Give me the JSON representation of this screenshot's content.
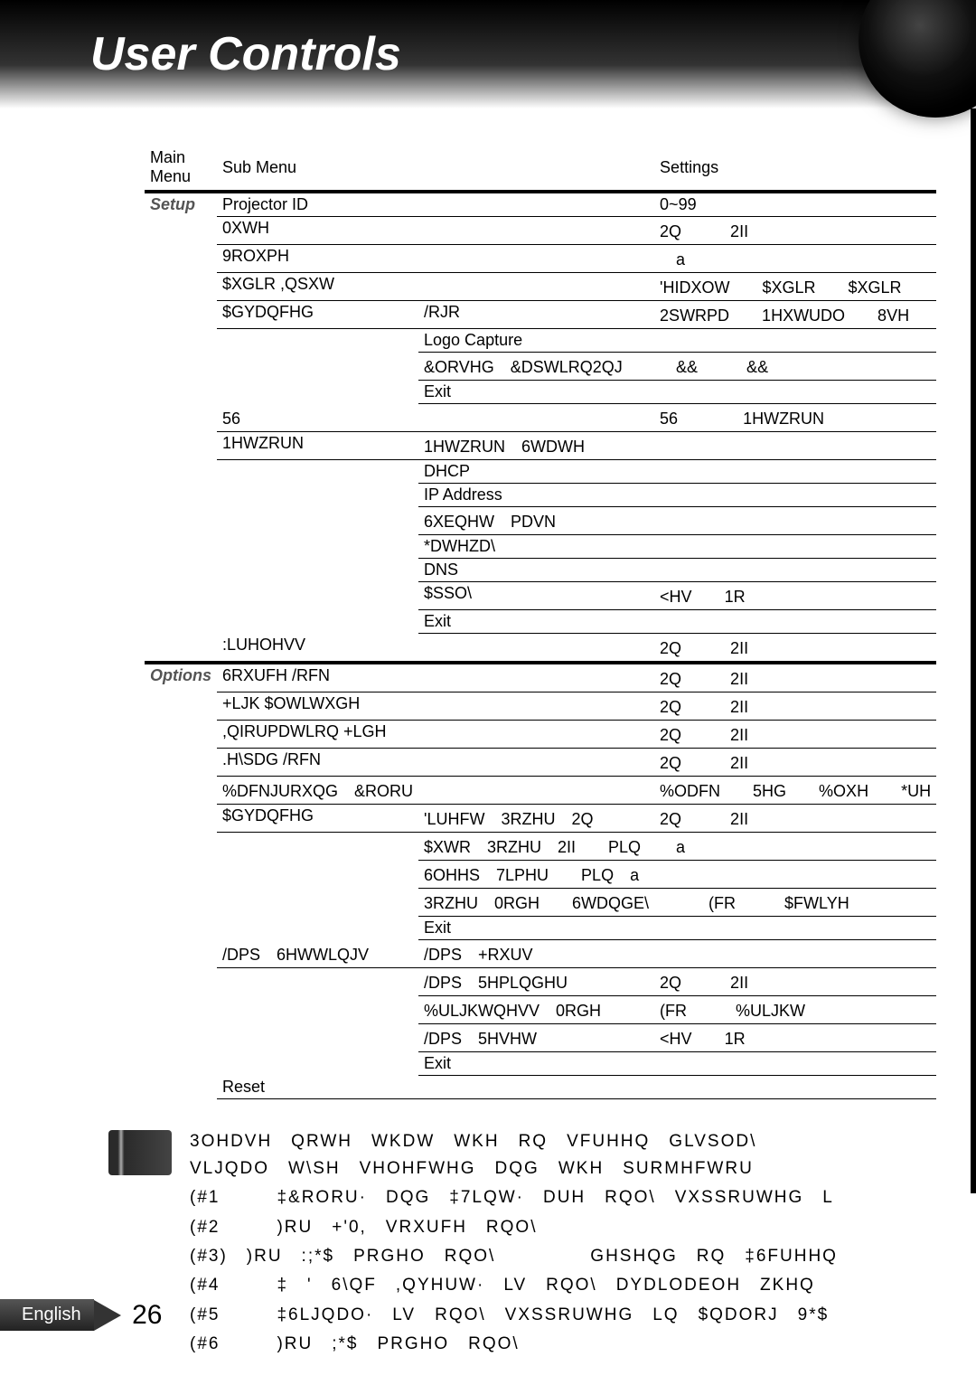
{
  "header": {
    "title": "User Controls"
  },
  "columns": {
    "c1": "Main Menu",
    "c2": "Sub Menu",
    "c3": "Settings"
  },
  "setup": {
    "label": "Setup",
    "rows": [
      {
        "sub": "Projector ID",
        "third": "",
        "set": "0~99"
      },
      {
        "sub": "0XWH",
        "third": "",
        "set": "2Q　　　2II"
      },
      {
        "sub": "9ROXPH",
        "third": "",
        "set": "　a　"
      },
      {
        "sub": "$XGLR ,QSXW",
        "third": "",
        "set": "'HIDXOW　　$XGLR　　$XGLR"
      },
      {
        "sub": "$GYDQFHG",
        "third": "/RJR",
        "set": "2SWRPD　　1HXWUDO　　8VH"
      },
      {
        "sub": "",
        "third": "Logo Capture",
        "set": ""
      },
      {
        "sub": "",
        "third": "&ORVHG　&DSWLRQ2QJ",
        "set": "　&&　　　&&　"
      },
      {
        "sub": "",
        "third": "Exit",
        "set": ""
      },
      {
        "sub": "56　　",
        "third": "",
        "set": "56　　　　1HWZRUN"
      },
      {
        "sub": "1HWZRUN",
        "third": "1HWZRUN　6WDWH",
        "set": ""
      },
      {
        "sub": "",
        "third": "DHCP",
        "set": ""
      },
      {
        "sub": "",
        "third": "IP Address",
        "set": ""
      },
      {
        "sub": "",
        "third": "6XEQHW　PDVN",
        "set": ""
      },
      {
        "sub": "",
        "third": "*DWHZD\\",
        "set": ""
      },
      {
        "sub": "",
        "third": "DNS",
        "set": ""
      },
      {
        "sub": "",
        "third": "$SSO\\",
        "set": "<HV　　1R"
      },
      {
        "sub": "",
        "third": "Exit",
        "set": ""
      },
      {
        "sub": ":LUHOHVV",
        "third": "",
        "set": "2Q　　　2II"
      }
    ]
  },
  "options": {
    "label": "Options",
    "rows": [
      {
        "sub": "6RXUFH /RFN",
        "third": "",
        "set": "2Q　　　2II"
      },
      {
        "sub": "+LJK $OWLWXGH",
        "third": "",
        "set": "2Q　　　2II"
      },
      {
        "sub": ",QIRUPDWLRQ +LGH",
        "third": "",
        "set": "2Q　　　2II"
      },
      {
        "sub": ".H\\SDG /RFN",
        "third": "",
        "set": "2Q　　　2II"
      },
      {
        "sub": "%DFNJURXQG　&RORU",
        "third": "",
        "set": "%ODFN　　5HG　　%OXH　　*UH"
      },
      {
        "sub": "$GYDQFHG",
        "third": "'LUHFW　3RZHU　2Q",
        "set": "2Q　　　2II"
      },
      {
        "sub": "",
        "third": "$XWR　3RZHU　2II　　PLQ",
        "set": "　a　　"
      },
      {
        "sub": "",
        "third": "6OHHS　7LPHU　　PLQ　a",
        "set": "　　"
      },
      {
        "sub": "",
        "third": "3RZHU　0RGH　　6WDQGE\\",
        "set": "　　　(FR　　　$FWLYH"
      },
      {
        "sub": "",
        "third": "Exit",
        "set": ""
      },
      {
        "sub": "/DPS　6HWWLQJV",
        "third": "/DPS　+RXUV",
        "set": ""
      },
      {
        "sub": "",
        "third": "/DPS　5HPLQGHU",
        "set": "2Q　　　2II"
      },
      {
        "sub": "",
        "third": "%ULJKWQHVV　0RGH",
        "set": "(FR　　　%ULJKW"
      },
      {
        "sub": "",
        "third": "/DPS　5HVHW",
        "set": "<HV　　1R"
      },
      {
        "sub": "",
        "third": "Exit",
        "set": ""
      },
      {
        "sub": "Reset",
        "third": "",
        "set": ""
      }
    ]
  },
  "notes": {
    "intro": "3OHDVH　QRWH　WKDW　WKH　RQ　VFUHHQ　GLVSOD\\　　　　　　VLJQDO　W\\SH　VHOHFWHG　DQG　WKH　SURMHFWRU　",
    "lines": [
      "(#1　　　‡&RORU·　DQG　‡7LQW·　DUH　RQO\\　VXSSRUWHG　L",
      "(#2　　　)RU　+'0,　VRXUFH　RQO\\",
      "(#3)　)RU　:;*$　PRGHO　RQO\\　　　　　GHSHQG　RQ　‡6FUHHQ",
      "(#4　　　‡　'　6\\QF　,QYHUW·　LV　RQO\\　DYDLODEOH　ZKHQ",
      "(#5　　　‡6LJQDO·　LV　RQO\\　VXSSRUWHG　LQ　$QDORJ　9*$",
      "(#6　　　)RU　;*$　PRGHO　RQO\\"
    ]
  },
  "footer": {
    "lang": "English",
    "page": "26"
  }
}
